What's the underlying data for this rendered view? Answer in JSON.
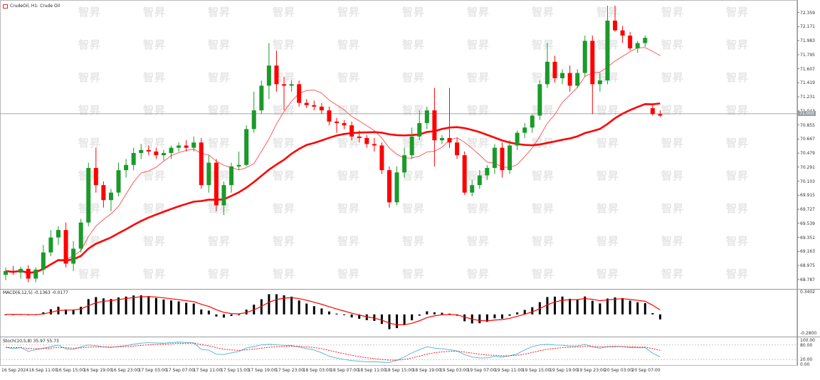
{
  "chart": {
    "title": "CrudeOil, H1: Crude Oil",
    "current_price": "71.005",
    "price_ticks": [
      "72.359",
      "72.171",
      "71.983",
      "71.795",
      "71.607",
      "71.419",
      "71.231",
      "71.043",
      "70.855",
      "70.667",
      "70.479",
      "70.291",
      "70.103",
      "69.915",
      "69.727",
      "69.539",
      "69.351",
      "69.163",
      "68.975",
      "68.787"
    ],
    "time_ticks": [
      "16 Sep 2024",
      "16 Sep 11:00",
      "16 Sep 15:00",
      "16 Sep 19:00",
      "16 Sep 23:00",
      "17 Sep 03:00",
      "17 Sep 07:00",
      "17 Sep 11:00",
      "17 Sep 15:00",
      "17 Sep 19:00",
      "17 Sep 23:00",
      "18 Sep 03:00",
      "18 Sep 07:00",
      "18 Sep 11:00",
      "18 Sep 15:00",
      "18 Sep 19:00",
      "19 Sep 03:00",
      "19 Sep 07:00",
      "19 Sep 11:00",
      "19 Sep 15:00",
      "19 Sep 19:00",
      "19 Sep 23:00",
      "20 Sep 03:00",
      "20 Sep 07:00"
    ],
    "watermark": "智昇",
    "colors": {
      "bull": "#1a9a2a",
      "bear": "#ff0000",
      "ma_fast": "#ff4d4d",
      "ma_slow": "#ff0000",
      "macd_hist": "#000000",
      "macd_signal": "#ff0000",
      "stoch_main": "#4ab3d6",
      "stoch_signal": "#ff0000"
    }
  },
  "macd": {
    "label": "MACD(6,12,5) -0.1363 -0.0177",
    "axis_top": "0.3402",
    "axis_bottom": "-0.2800"
  },
  "stoch": {
    "label": "Stoch(10,5,8) 35.97 55.73",
    "axis": [
      "100.00",
      "80.00",
      "20.00",
      "0.00"
    ]
  },
  "chart_data": {
    "type": "candlestick",
    "candles": [
      {
        "o": 68.85,
        "h": 68.95,
        "l": 68.78,
        "c": 68.9
      },
      {
        "o": 68.9,
        "h": 68.97,
        "l": 68.85,
        "c": 68.88
      },
      {
        "o": 68.88,
        "h": 68.96,
        "l": 68.8,
        "c": 68.93
      },
      {
        "o": 68.93,
        "h": 68.98,
        "l": 68.75,
        "c": 68.8
      },
      {
        "o": 68.8,
        "h": 68.95,
        "l": 68.75,
        "c": 68.92
      },
      {
        "o": 68.92,
        "h": 69.25,
        "l": 68.85,
        "c": 69.15
      },
      {
        "o": 69.15,
        "h": 69.45,
        "l": 69.1,
        "c": 69.35
      },
      {
        "o": 69.35,
        "h": 69.5,
        "l": 69.25,
        "c": 69.45
      },
      {
        "o": 69.45,
        "h": 69.55,
        "l": 68.95,
        "c": 69.0
      },
      {
        "o": 69.0,
        "h": 69.3,
        "l": 68.9,
        "c": 69.2
      },
      {
        "o": 69.2,
        "h": 69.6,
        "l": 69.15,
        "c": 69.55
      },
      {
        "o": 69.55,
        "h": 70.35,
        "l": 69.5,
        "c": 70.28
      },
      {
        "o": 70.28,
        "h": 70.55,
        "l": 69.95,
        "c": 70.05
      },
      {
        "o": 70.05,
        "h": 70.1,
        "l": 69.75,
        "c": 69.85
      },
      {
        "o": 69.85,
        "h": 70.0,
        "l": 69.7,
        "c": 69.95
      },
      {
        "o": 69.95,
        "h": 70.35,
        "l": 69.9,
        "c": 70.25
      },
      {
        "o": 70.25,
        "h": 70.4,
        "l": 70.15,
        "c": 70.32
      },
      {
        "o": 70.32,
        "h": 70.55,
        "l": 70.25,
        "c": 70.48
      },
      {
        "o": 70.48,
        "h": 70.6,
        "l": 70.4,
        "c": 70.52
      },
      {
        "o": 70.52,
        "h": 70.58,
        "l": 70.45,
        "c": 70.5
      },
      {
        "o": 70.5,
        "h": 70.55,
        "l": 70.4,
        "c": 70.45
      },
      {
        "o": 70.45,
        "h": 70.52,
        "l": 70.38,
        "c": 70.48
      },
      {
        "o": 70.48,
        "h": 70.58,
        "l": 70.4,
        "c": 70.55
      },
      {
        "o": 70.55,
        "h": 70.62,
        "l": 70.5,
        "c": 70.58
      },
      {
        "o": 70.58,
        "h": 70.65,
        "l": 70.5,
        "c": 70.55
      },
      {
        "o": 70.55,
        "h": 70.7,
        "l": 70.5,
        "c": 70.62
      },
      {
        "o": 70.62,
        "h": 70.68,
        "l": 70.0,
        "c": 70.05
      },
      {
        "o": 70.05,
        "h": 70.45,
        "l": 69.95,
        "c": 70.35
      },
      {
        "o": 70.35,
        "h": 70.4,
        "l": 69.7,
        "c": 69.78
      },
      {
        "o": 69.78,
        "h": 70.1,
        "l": 69.65,
        "c": 70.05
      },
      {
        "o": 70.05,
        "h": 70.35,
        "l": 69.95,
        "c": 70.3
      },
      {
        "o": 70.3,
        "h": 70.5,
        "l": 70.25,
        "c": 70.32
      },
      {
        "o": 70.32,
        "h": 70.85,
        "l": 70.3,
        "c": 70.8
      },
      {
        "o": 70.8,
        "h": 71.3,
        "l": 70.75,
        "c": 71.05
      },
      {
        "o": 71.05,
        "h": 71.45,
        "l": 71.0,
        "c": 71.38
      },
      {
        "o": 71.38,
        "h": 71.95,
        "l": 71.2,
        "c": 71.65
      },
      {
        "o": 71.65,
        "h": 71.85,
        "l": 71.3,
        "c": 71.4
      },
      {
        "o": 71.4,
        "h": 71.5,
        "l": 71.05,
        "c": 71.38
      },
      {
        "o": 71.38,
        "h": 71.45,
        "l": 71.3,
        "c": 71.4
      },
      {
        "o": 71.4,
        "h": 71.45,
        "l": 71.1,
        "c": 71.15
      },
      {
        "o": 71.15,
        "h": 71.2,
        "l": 71.08,
        "c": 71.12
      },
      {
        "o": 71.12,
        "h": 71.18,
        "l": 71.05,
        "c": 71.1
      },
      {
        "o": 71.1,
        "h": 71.15,
        "l": 71.0,
        "c": 71.05
      },
      {
        "o": 71.05,
        "h": 71.1,
        "l": 70.85,
        "c": 70.9
      },
      {
        "o": 70.9,
        "h": 70.95,
        "l": 70.75,
        "c": 70.88
      },
      {
        "o": 70.88,
        "h": 70.92,
        "l": 70.8,
        "c": 70.85
      },
      {
        "o": 70.85,
        "h": 70.9,
        "l": 70.65,
        "c": 70.7
      },
      {
        "o": 70.7,
        "h": 70.78,
        "l": 70.62,
        "c": 70.68
      },
      {
        "o": 70.68,
        "h": 70.72,
        "l": 70.55,
        "c": 70.6
      },
      {
        "o": 70.6,
        "h": 70.68,
        "l": 70.5,
        "c": 70.58
      },
      {
        "o": 70.58,
        "h": 70.62,
        "l": 70.2,
        "c": 70.25
      },
      {
        "o": 70.25,
        "h": 70.3,
        "l": 69.75,
        "c": 69.82
      },
      {
        "o": 69.82,
        "h": 70.3,
        "l": 69.78,
        "c": 70.22
      },
      {
        "o": 70.22,
        "h": 70.55,
        "l": 70.15,
        "c": 70.45
      },
      {
        "o": 70.45,
        "h": 70.82,
        "l": 70.4,
        "c": 70.7
      },
      {
        "o": 70.7,
        "h": 71.05,
        "l": 70.65,
        "c": 70.88
      },
      {
        "o": 70.88,
        "h": 71.1,
        "l": 70.8,
        "c": 71.05
      },
      {
        "o": 71.05,
        "h": 71.35,
        "l": 70.3,
        "c": 70.65
      },
      {
        "o": 70.65,
        "h": 70.72,
        "l": 70.6,
        "c": 70.68
      },
      {
        "o": 70.68,
        "h": 71.35,
        "l": 70.55,
        "c": 70.62
      },
      {
        "o": 70.62,
        "h": 70.68,
        "l": 70.4,
        "c": 70.45
      },
      {
        "o": 70.45,
        "h": 70.5,
        "l": 69.92,
        "c": 69.95
      },
      {
        "o": 69.95,
        "h": 70.12,
        "l": 69.9,
        "c": 70.05
      },
      {
        "o": 70.05,
        "h": 70.25,
        "l": 70.0,
        "c": 70.18
      },
      {
        "o": 70.18,
        "h": 70.32,
        "l": 70.12,
        "c": 70.28
      },
      {
        "o": 70.28,
        "h": 70.6,
        "l": 70.2,
        "c": 70.55
      },
      {
        "o": 70.55,
        "h": 70.62,
        "l": 70.15,
        "c": 70.25
      },
      {
        "o": 70.25,
        "h": 70.65,
        "l": 70.2,
        "c": 70.58
      },
      {
        "o": 70.58,
        "h": 70.78,
        "l": 70.52,
        "c": 70.75
      },
      {
        "o": 70.75,
        "h": 70.88,
        "l": 70.68,
        "c": 70.82
      },
      {
        "o": 70.82,
        "h": 71.0,
        "l": 70.75,
        "c": 70.98
      },
      {
        "o": 70.98,
        "h": 71.45,
        "l": 70.92,
        "c": 71.4
      },
      {
        "o": 71.4,
        "h": 71.95,
        "l": 71.35,
        "c": 71.7
      },
      {
        "o": 71.7,
        "h": 71.78,
        "l": 71.42,
        "c": 71.48
      },
      {
        "o": 71.48,
        "h": 71.6,
        "l": 71.4,
        "c": 71.55
      },
      {
        "o": 71.55,
        "h": 71.65,
        "l": 71.3,
        "c": 71.38
      },
      {
        "o": 71.38,
        "h": 71.6,
        "l": 71.35,
        "c": 71.55
      },
      {
        "o": 71.55,
        "h": 72.05,
        "l": 71.5,
        "c": 71.98
      },
      {
        "o": 71.98,
        "h": 72.05,
        "l": 71.0,
        "c": 71.4
      },
      {
        "o": 71.4,
        "h": 71.55,
        "l": 71.3,
        "c": 71.45
      },
      {
        "o": 71.45,
        "h": 72.45,
        "l": 71.4,
        "c": 72.25
      },
      {
        "o": 72.25,
        "h": 72.45,
        "l": 72.1,
        "c": 72.12
      },
      {
        "o": 72.12,
        "h": 72.18,
        "l": 71.95,
        "c": 72.05
      },
      {
        "o": 72.05,
        "h": 72.1,
        "l": 71.85,
        "c": 71.88
      },
      {
        "o": 71.88,
        "h": 71.98,
        "l": 71.82,
        "c": 71.95
      },
      {
        "o": 71.95,
        "h": 72.05,
        "l": 71.9,
        "c": 72.02
      },
      {
        "o": 71.08,
        "h": 71.12,
        "l": 70.98,
        "c": 71.0
      },
      {
        "o": 71.0,
        "h": 71.05,
        "l": 70.96,
        "c": 70.98
      }
    ],
    "ylim": [
      68.7,
      72.45
    ]
  }
}
